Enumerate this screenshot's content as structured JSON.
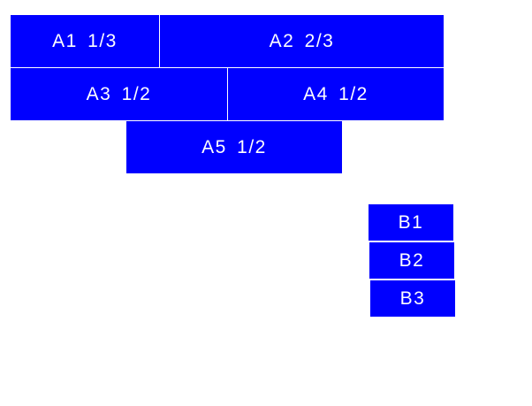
{
  "colors": {
    "box": "#0000ff",
    "text": "#ffffff"
  },
  "group_a": [
    {
      "label": "A1 1/3"
    },
    {
      "label": "A2 2/3"
    },
    {
      "label": "A3 1/2"
    },
    {
      "label": "A4 1/2"
    },
    {
      "label": "A5 1/2"
    }
  ],
  "group_b": [
    {
      "label": "B1"
    },
    {
      "label": "B2"
    },
    {
      "label": "B3"
    }
  ]
}
